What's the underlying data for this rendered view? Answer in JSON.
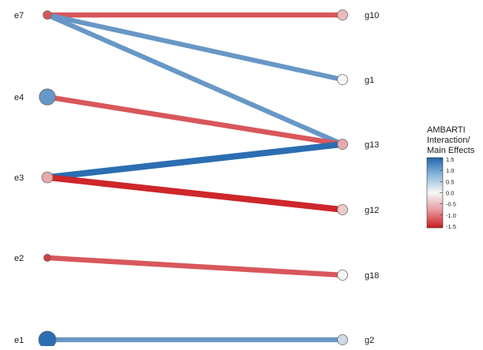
{
  "chart_data": {
    "type": "bipartite-network",
    "title": "",
    "legend": {
      "title_lines": [
        "AMBARTI",
        "Interaction/",
        "Main Effects"
      ],
      "ticks": [
        "1.5",
        "1.0",
        "0.5",
        "0.0",
        "-0.5",
        "-1.0",
        "-1.5"
      ],
      "tick_values": [
        1.5,
        1.0,
        0.5,
        0.0,
        -0.5,
        -1.0,
        -1.5
      ],
      "placement": "right",
      "scale_min": -1.5,
      "scale_max": 1.5,
      "colors": {
        "high": "#1f66ad",
        "mid": "#f7f7f7",
        "low": "#cc1a1f"
      }
    },
    "environments": [
      {
        "name": "e7",
        "effect": -1.0,
        "size": 0.3
      },
      {
        "name": "e4",
        "effect": 0.9,
        "size": 0.9
      },
      {
        "name": "e3",
        "effect": -0.4,
        "size": 0.5
      },
      {
        "name": "e2",
        "effect": -1.2,
        "size": 0.2
      },
      {
        "name": "e1",
        "effect": 1.4,
        "size": 1.0
      }
    ],
    "genotypes": [
      {
        "name": "g10",
        "effect": -0.3
      },
      {
        "name": "g1",
        "effect": 0.0
      },
      {
        "name": "g13",
        "effect": -0.4
      },
      {
        "name": "g12",
        "effect": -0.2
      },
      {
        "name": "g18",
        "effect": 0.0
      },
      {
        "name": "g2",
        "effect": 0.2
      }
    ],
    "interactions": [
      {
        "env": "e7",
        "gen": "g10",
        "value": -1.0
      },
      {
        "env": "e7",
        "gen": "g1",
        "value": 0.9
      },
      {
        "env": "e7",
        "gen": "g13",
        "value": 0.9
      },
      {
        "env": "e4",
        "gen": "g13",
        "value": -1.0
      },
      {
        "env": "e3",
        "gen": "g13",
        "value": 1.4
      },
      {
        "env": "e3",
        "gen": "g12",
        "value": -1.4
      },
      {
        "env": "e2",
        "gen": "g18",
        "value": -1.0
      },
      {
        "env": "e1",
        "gen": "g2",
        "value": 0.9
      }
    ]
  }
}
